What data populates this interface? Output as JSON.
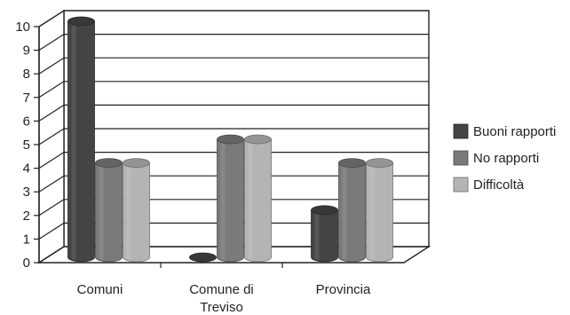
{
  "chart_data": {
    "type": "bar",
    "categories": [
      "Comuni",
      "Comune di Treviso",
      "Provincia"
    ],
    "category_label_lines": [
      [
        "Comuni"
      ],
      [
        "Comune di",
        "Treviso"
      ],
      [
        "Provincia"
      ]
    ],
    "series": [
      {
        "name": "Buoni rapporti",
        "values": [
          10,
          0,
          2
        ],
        "color": "#444444"
      },
      {
        "name": "No rapporti",
        "values": [
          4,
          5,
          4
        ],
        "color": "#7a7a7a"
      },
      {
        "name": "Difficoltà",
        "values": [
          4,
          5,
          4
        ],
        "color": "#b4b4b4"
      }
    ],
    "yticks": [
      0,
      1,
      2,
      3,
      4,
      5,
      6,
      7,
      8,
      9,
      10
    ],
    "ylim": [
      0,
      10
    ],
    "grid": true,
    "legend_position": "right",
    "style": "3d-cylinder"
  }
}
